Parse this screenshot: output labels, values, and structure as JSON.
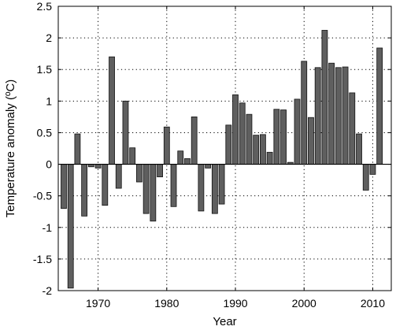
{
  "chart_data": {
    "type": "bar",
    "title": "",
    "xlabel": "Year",
    "ylabel": "Temperature anomaly (ºC)",
    "xlim": [
      1964.2,
      2012.7
    ],
    "ylim": [
      -2,
      2.5
    ],
    "xticks": [
      1970,
      1980,
      1990,
      2000,
      2010
    ],
    "yticks": [
      -2,
      -1.5,
      -1,
      -0.5,
      0,
      0.5,
      1,
      1.5,
      2,
      2.5
    ],
    "ytick_labels": [
      "-2",
      "-1.5",
      "-1",
      "-0.5",
      "0",
      "0.5",
      "1",
      "1.5",
      "2",
      "2.5"
    ],
    "grid": true,
    "bar_color": "#5f5f5f",
    "x": [
      1965,
      1966,
      1967,
      1968,
      1969,
      1970,
      1971,
      1972,
      1973,
      1974,
      1975,
      1976,
      1977,
      1978,
      1979,
      1980,
      1981,
      1982,
      1983,
      1984,
      1985,
      1986,
      1987,
      1988,
      1989,
      1990,
      1991,
      1992,
      1993,
      1994,
      1995,
      1996,
      1997,
      1998,
      1999,
      2000,
      2001,
      2002,
      2003,
      2004,
      2005,
      2006,
      2007,
      2008,
      2009,
      2010,
      2011,
      2012
    ],
    "values": [
      -0.7,
      -1.96,
      0.48,
      -0.82,
      -0.04,
      -0.06,
      -0.65,
      1.7,
      -0.38,
      1.0,
      0.26,
      -0.28,
      -0.78,
      -0.9,
      -0.2,
      0.59,
      -0.67,
      0.21,
      0.09,
      0.75,
      -0.74,
      -0.06,
      -0.78,
      -0.63,
      0.62,
      1.1,
      0.97,
      0.79,
      0.46,
      0.47,
      0.19,
      0.87,
      0.86,
      0.03,
      1.03,
      1.63,
      0.74,
      1.53,
      2.12,
      1.6,
      1.53,
      1.54,
      1.13,
      0.48,
      -0.41,
      -0.16,
      1.84,
      0.0
    ]
  }
}
